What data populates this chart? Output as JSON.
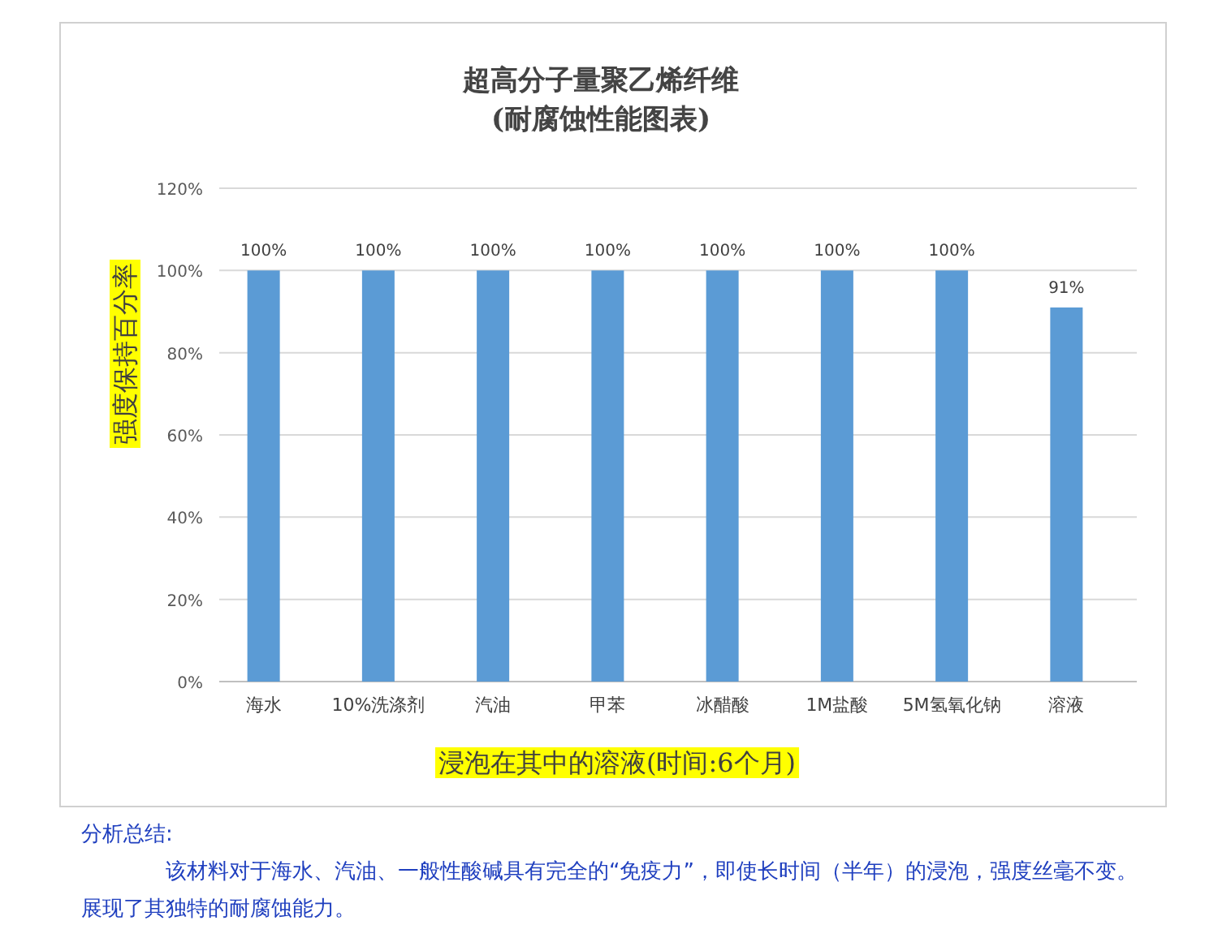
{
  "chart_data": {
    "type": "bar",
    "title": "超高分子量聚乙烯纤维\n(耐腐蚀性能图表)",
    "ylabel": "强度保持百分率",
    "xlabel": "浸泡在其中的溶液(时间:6个月)",
    "categories": [
      "海水",
      "10%洗涤剂",
      "汽油",
      "甲苯",
      "冰醋酸",
      "1M盐酸",
      "5M氢氧化钠",
      "溶液"
    ],
    "values": [
      100,
      100,
      100,
      100,
      100,
      100,
      100,
      91
    ],
    "value_labels": [
      "100%",
      "100%",
      "100%",
      "100%",
      "100%",
      "100%",
      "100%",
      "91%"
    ],
    "color": "#5b9bd5",
    "ylim": [
      0,
      120
    ],
    "yticks": [
      {
        "value": 0,
        "label": "0%"
      },
      {
        "value": 20,
        "label": "20%"
      },
      {
        "value": 40,
        "label": "40%"
      },
      {
        "value": 60,
        "label": "60%"
      },
      {
        "value": 80,
        "label": "80%"
      },
      {
        "value": 100,
        "label": "100%"
      },
      {
        "value": 120,
        "label": "120%"
      }
    ],
    "grid": "y",
    "annotations": [
      "分析总结:",
      "该材料对于海水、汽油、一般性酸碱具有完全的“免疫力”，即使长时间（半年）的浸泡，强度丝毫不变。展现了其独特的耐腐蚀能力。"
    ]
  }
}
